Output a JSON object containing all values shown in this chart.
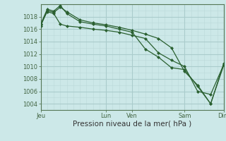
{
  "bg_color": "#cce8e8",
  "grid_color_major": "#aacccc",
  "grid_color_minor": "#bbd8d8",
  "line_color": "#2a6030",
  "marker_color": "#2a6030",
  "xlabel": "Pression niveau de la mer( hPa )",
  "ylim": [
    1003,
    1020
  ],
  "yticks": [
    1004,
    1006,
    1008,
    1010,
    1012,
    1014,
    1016,
    1018
  ],
  "xtick_labels": [
    "Jeu",
    "Lun",
    "Ven",
    "Sam",
    "Dim"
  ],
  "xtick_positions": [
    0,
    5,
    7,
    11,
    14
  ],
  "x_total": 14,
  "series": [
    {
      "x": [
        0,
        0.5,
        1,
        1.5,
        2,
        3,
        4,
        5,
        6,
        7,
        8,
        9,
        10,
        11,
        12,
        13,
        14
      ],
      "y": [
        1016.5,
        1019.0,
        1018.7,
        1019.5,
        1018.8,
        1017.5,
        1017.0,
        1016.7,
        1016.3,
        1015.8,
        1015.2,
        1014.5,
        1013.0,
        1009.2,
        1007.0,
        1004.0,
        1010.5
      ]
    },
    {
      "x": [
        0,
        0.5,
        1,
        1.5,
        2,
        3,
        4,
        5,
        6,
        7,
        8,
        9,
        10,
        11,
        12,
        13,
        14
      ],
      "y": [
        1016.8,
        1019.2,
        1018.9,
        1019.8,
        1018.5,
        1017.2,
        1016.8,
        1016.5,
        1016.0,
        1015.5,
        1012.8,
        1011.5,
        1009.8,
        1009.5,
        1006.8,
        1004.0,
        1010.2
      ]
    },
    {
      "x": [
        0,
        0.5,
        1,
        1.5,
        2,
        3,
        4,
        5,
        6,
        7,
        8,
        9,
        10,
        11,
        12,
        13,
        14
      ],
      "y": [
        1016.7,
        1018.8,
        1018.5,
        1016.8,
        1016.5,
        1016.3,
        1016.0,
        1015.8,
        1015.5,
        1015.0,
        1014.5,
        1012.2,
        1011.0,
        1010.0,
        1006.0,
        1005.5,
        1010.3
      ]
    }
  ]
}
